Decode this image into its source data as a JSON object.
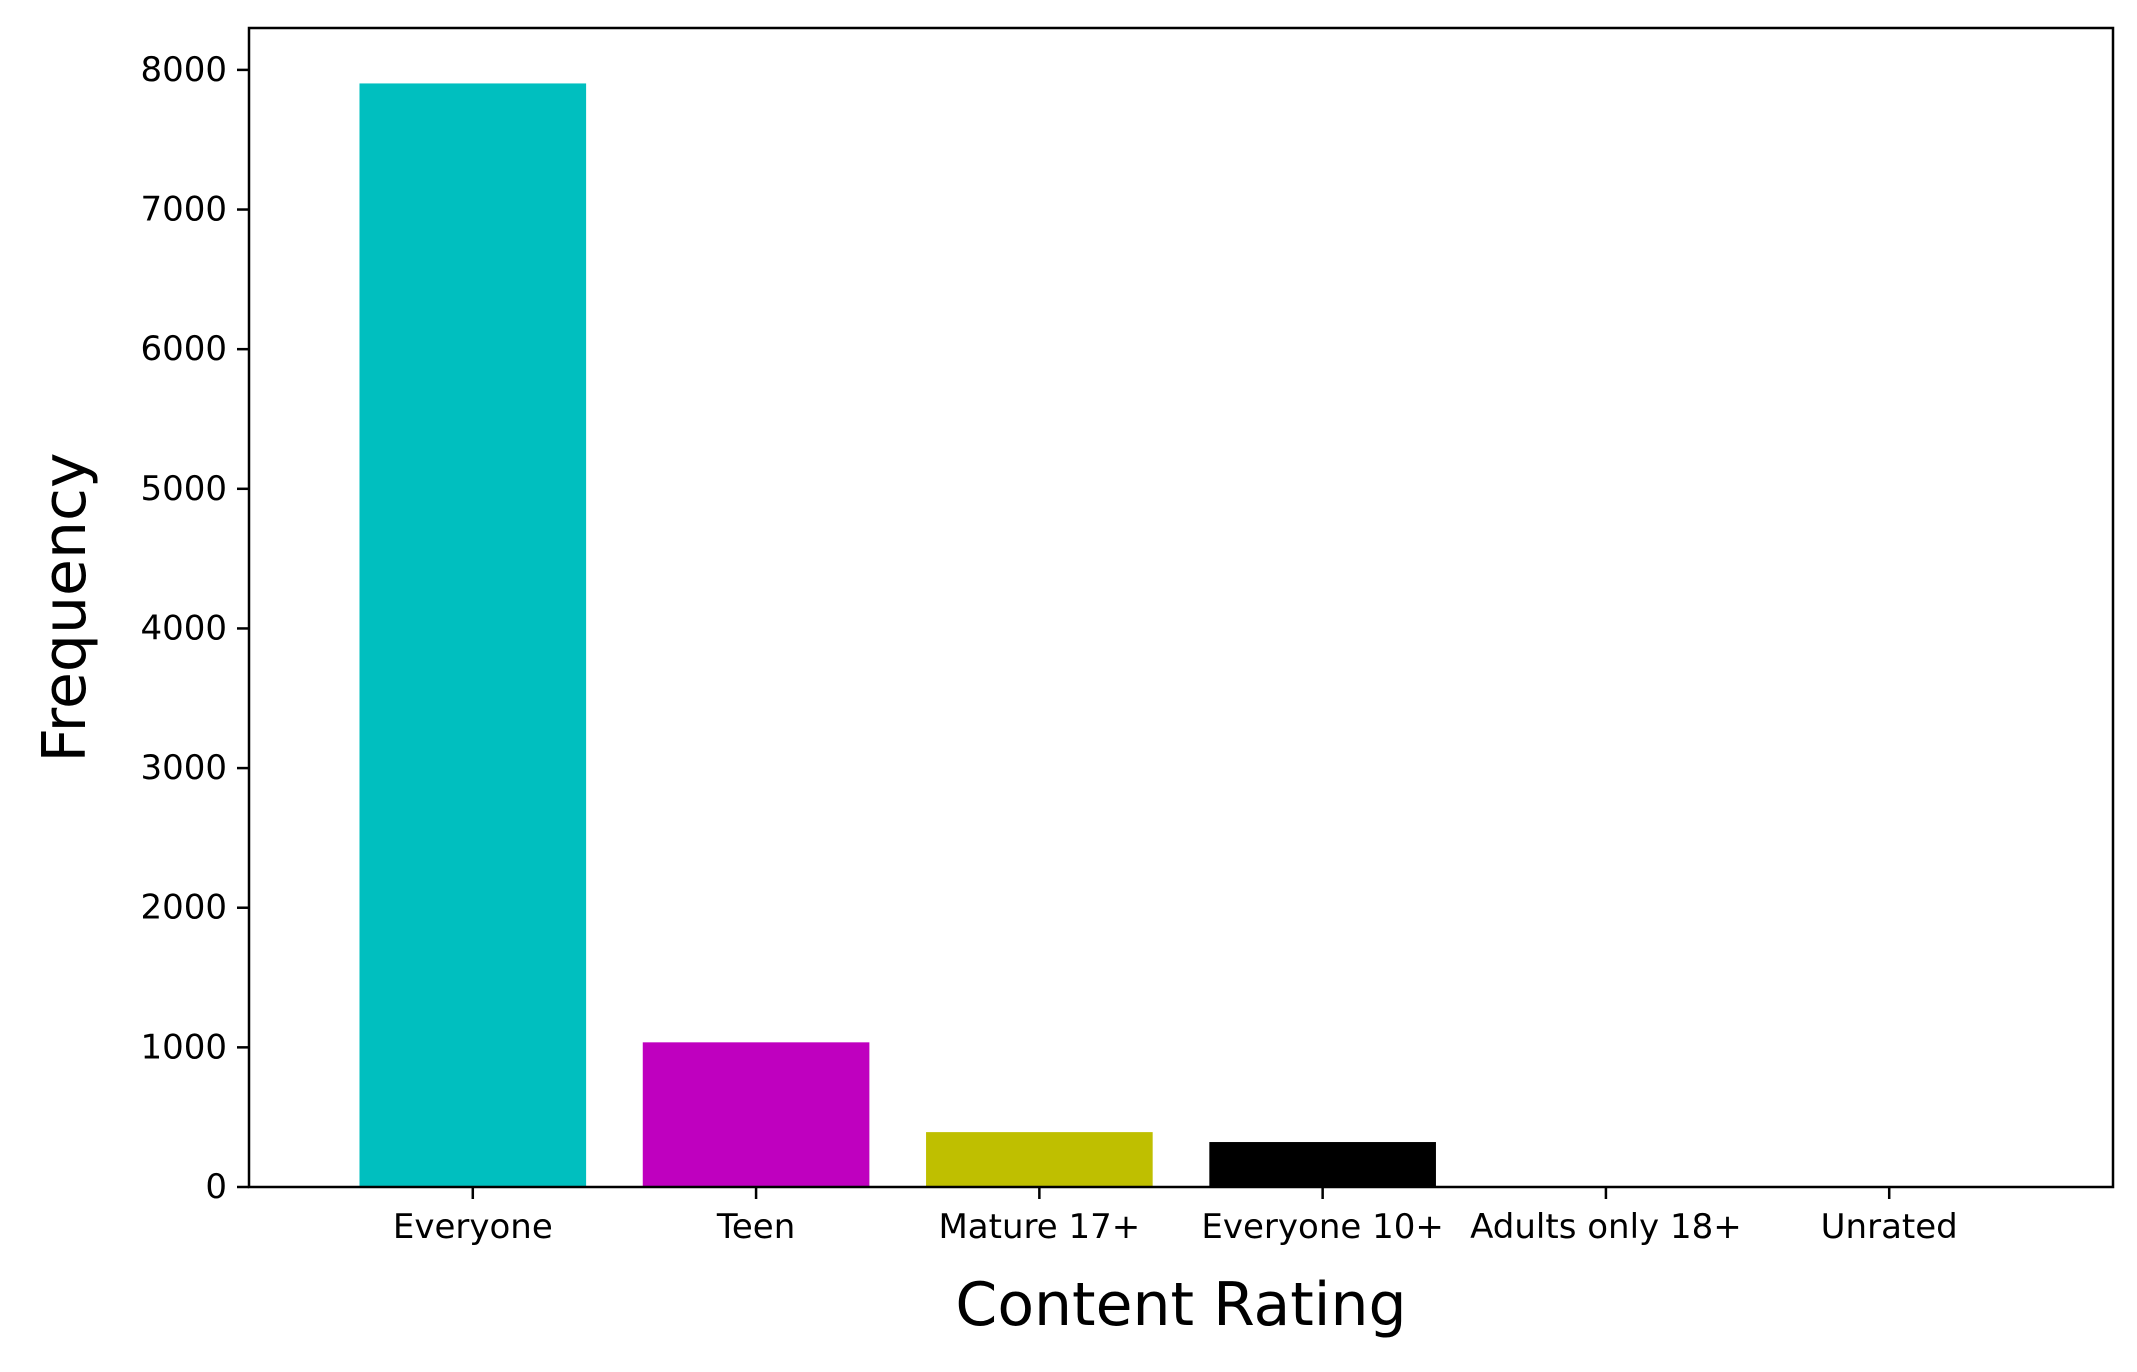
{
  "chart_data": {
    "type": "bar",
    "categories": [
      "Everyone",
      "Teen",
      "Mature 17+",
      "Everyone 10+",
      "Adults only 18+",
      "Unrated"
    ],
    "values": [
      7903,
      1036,
      393,
      322,
      3,
      2
    ],
    "colors": [
      "#00bfbf",
      "#bf00bf",
      "#bfbf00",
      "#000000",
      "#00bfbf",
      "#bf00bf"
    ],
    "title": "",
    "xlabel": "Content Rating",
    "ylabel": "Frequency",
    "ylim": [
      0,
      8300
    ],
    "yticks": [
      0,
      1000,
      2000,
      3000,
      4000,
      5000,
      6000,
      7000,
      8000
    ],
    "grid": false,
    "legend": "none"
  }
}
